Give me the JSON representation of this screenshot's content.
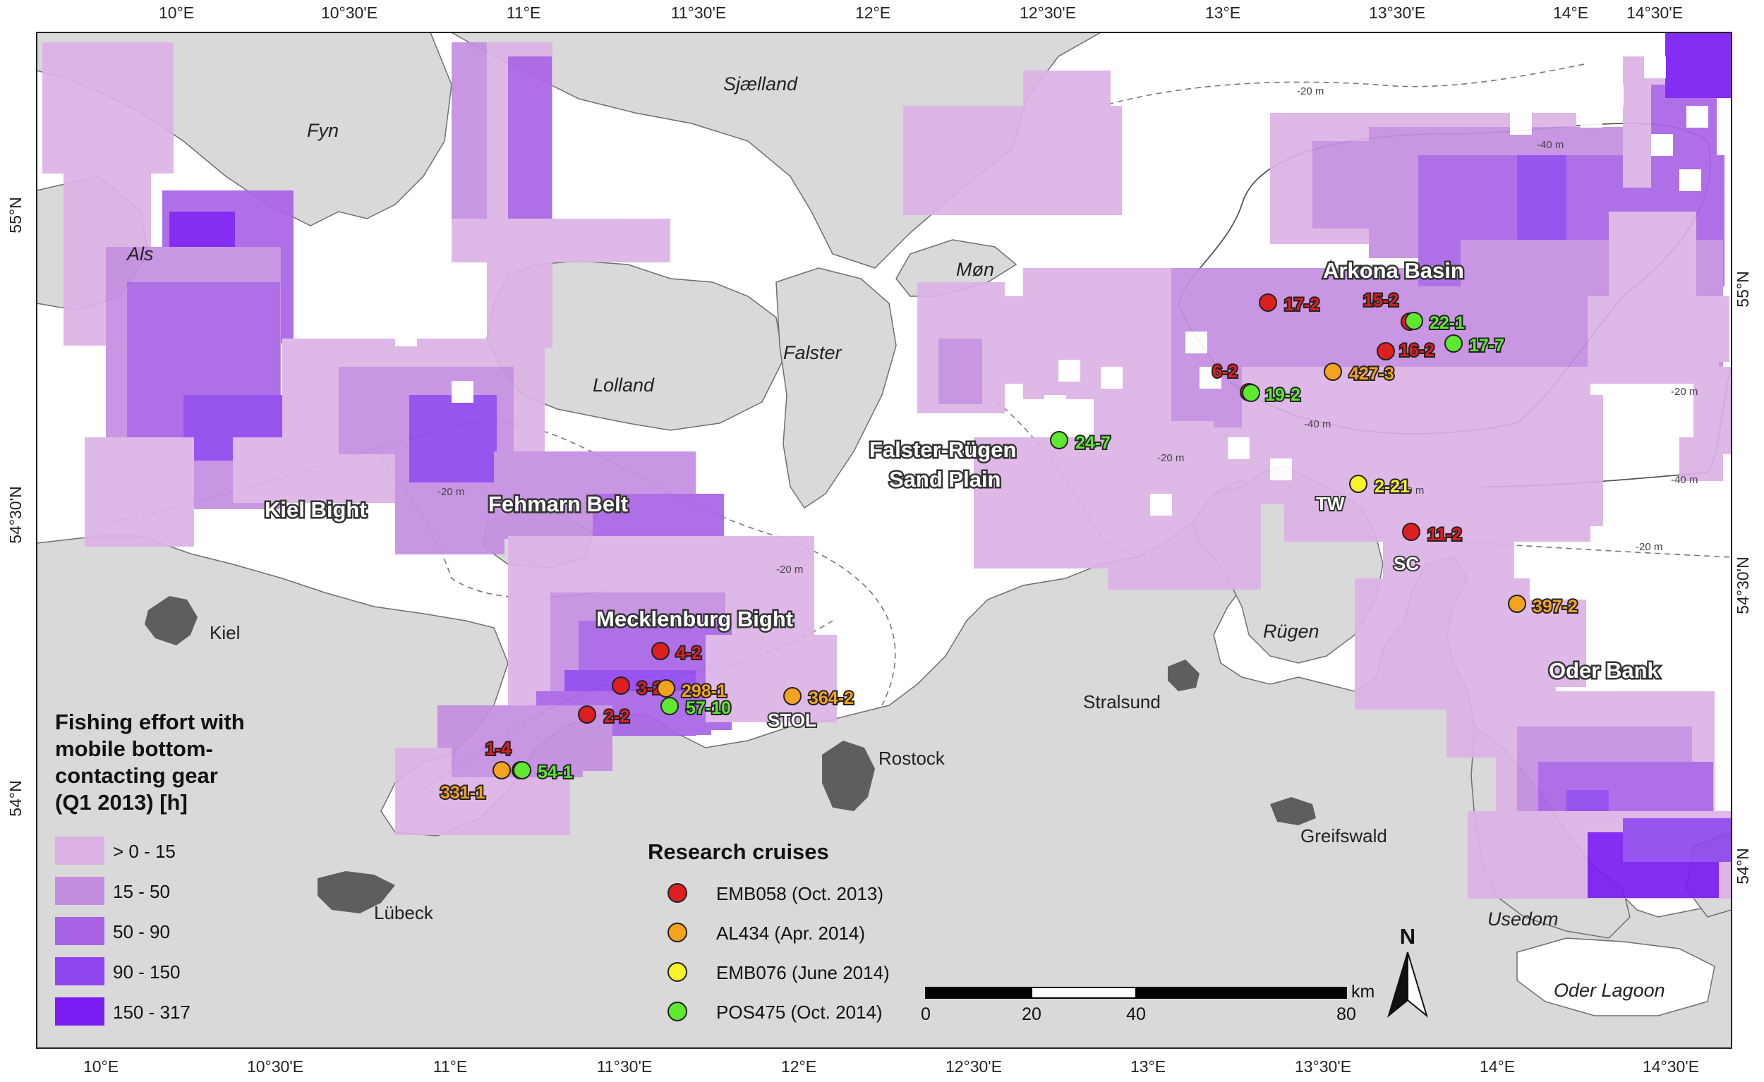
{
  "map": {
    "lon_range": [
      9.78,
      14.68
    ],
    "lat_range": [
      53.835,
      55.555
    ],
    "top_lon_ticks": [
      "10°E",
      "10°30'E",
      "11°E",
      "11°30'E",
      "12°E",
      "12°30'E",
      "13°E",
      "13°30'E",
      "14°E",
      "14°30'E"
    ],
    "bottom_lon_ticks": [
      "10°E",
      "10°30'E",
      "11°E",
      "11°30'E",
      "12°E",
      "12°30'E",
      "13°E",
      "13°30'E",
      "14°E",
      "14°30'E"
    ],
    "left_lat_ticks": [
      "55°N",
      "54°30'N",
      "54°N"
    ],
    "right_lat_ticks": [
      "55°N",
      "54°30'N",
      "54°N"
    ],
    "depth_labels": [
      "-20 m",
      "-20 m",
      "-20 m",
      "-20 m",
      "-20 m",
      "-20 m",
      "-40 m",
      "-40 m",
      "-40 m",
      "-20 m"
    ]
  },
  "land_labels": [
    "Sjælland",
    "Fyn",
    "Als",
    "Møn",
    "Falster",
    "Lolland",
    "Rügen",
    "Usedom",
    "Oder Lagoon"
  ],
  "city_labels": [
    "Kiel",
    "Lübeck",
    "Rostock",
    "Stralsund",
    "Greifswald"
  ],
  "region_labels": [
    "Arkona Basin",
    "Falster-Rügen",
    "Sand Plain",
    "Kiel Bight",
    "Fehmarn Belt",
    "Mecklenburg Bight",
    "Oder Bank"
  ],
  "extra_labels": [
    "TW",
    "SC",
    "STOL"
  ],
  "legend": {
    "title_lines": [
      "Fishing effort with",
      "mobile bottom-",
      "contacting gear",
      "(Q1 2013) [h]"
    ],
    "classes": [
      {
        "label": "> 0 - 15",
        "color": "#dcb2e6"
      },
      {
        "label": "15 - 50",
        "color": "#c48ee0"
      },
      {
        "label": "50 - 90",
        "color": "#a964e6"
      },
      {
        "label": "90 - 150",
        "color": "#9046ee"
      },
      {
        "label": "150 - 317",
        "color": "#7a1cf2"
      }
    ]
  },
  "cruises": {
    "title": "Research cruises",
    "items": [
      {
        "label": "EMB058 (Oct. 2013)",
        "color": "#dd1f1f"
      },
      {
        "label": "AL434 (Apr. 2014)",
        "color": "#f5a21f"
      },
      {
        "label": "EMB076 (June 2014)",
        "color": "#f8f22a"
      },
      {
        "label": "POS475 (Oct. 2014)",
        "color": "#5ee830"
      }
    ]
  },
  "stations": [
    {
      "label": "17-2",
      "cruise": 0
    },
    {
      "label": "15-2",
      "cruise": 0
    },
    {
      "label": "22-1",
      "cruise": 3
    },
    {
      "label": "16-2",
      "cruise": 0
    },
    {
      "label": "17-7",
      "cruise": 3
    },
    {
      "label": "6-2",
      "cruise": 0
    },
    {
      "label": "19-2",
      "cruise": 3
    },
    {
      "label": "427-3",
      "cruise": 1
    },
    {
      "label": "24-7",
      "cruise": 3
    },
    {
      "label": "2-21",
      "cruise": 2
    },
    {
      "label": "11-2",
      "cruise": 0
    },
    {
      "label": "397-2",
      "cruise": 1
    },
    {
      "label": "4-2",
      "cruise": 0
    },
    {
      "label": "3-2",
      "cruise": 0
    },
    {
      "label": "298-1",
      "cruise": 1
    },
    {
      "label": "57-10",
      "cruise": 3
    },
    {
      "label": "2-2",
      "cruise": 0
    },
    {
      "label": "364-2",
      "cruise": 1
    },
    {
      "label": "1-4",
      "cruise": 0
    },
    {
      "label": "54-1",
      "cruise": 3
    },
    {
      "label": "331-1",
      "cruise": 1
    }
  ],
  "scale_bar": {
    "unit": "km",
    "labels": [
      "0",
      "20",
      "40",
      "80"
    ]
  },
  "north_arrow": {
    "label": "N"
  },
  "colors": {
    "land": "#d9d9d9",
    "sea": "#ffffff",
    "coast": "#707070",
    "city": "#5e5e5e"
  }
}
